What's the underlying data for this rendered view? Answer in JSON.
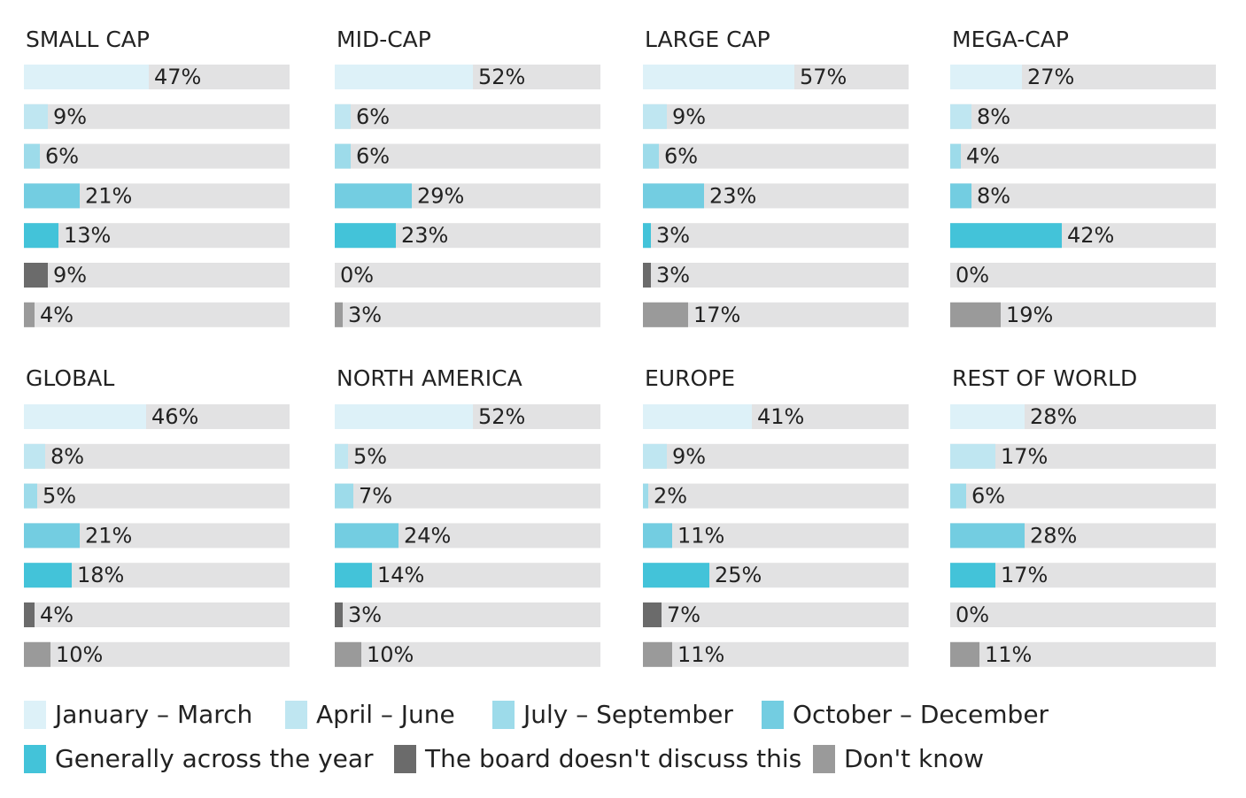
{
  "chart_data": {
    "type": "bar",
    "orientation": "horizontal",
    "xlim": [
      0,
      100
    ],
    "grid": false,
    "legend_position": "bottom",
    "value_suffix": "%",
    "series": [
      {
        "name": "January – March",
        "color": "#DDF1F8"
      },
      {
        "name": "April – June",
        "color": "#BFE6F1"
      },
      {
        "name": "July – September",
        "color": "#9DDBEA"
      },
      {
        "name": "October – December",
        "color": "#73CDE1"
      },
      {
        "name": "Generally across the year",
        "color": "#43C3D9"
      },
      {
        "name": "The board doesn't discuss this",
        "color": "#6B6B6B"
      },
      {
        "name": "Don't know",
        "color": "#9A9A9A"
      }
    ],
    "track_color": "#E2E2E3",
    "panels": [
      {
        "title": "SMALL CAP",
        "values": [
          47,
          9,
          6,
          21,
          13,
          9,
          4
        ]
      },
      {
        "title": "MID-CAP",
        "values": [
          52,
          6,
          6,
          29,
          23,
          0,
          3
        ]
      },
      {
        "title": "LARGE CAP",
        "values": [
          57,
          9,
          6,
          23,
          3,
          3,
          17
        ]
      },
      {
        "title": "MEGA-CAP",
        "values": [
          27,
          8,
          4,
          8,
          42,
          0,
          19
        ]
      },
      {
        "title": "GLOBAL",
        "values": [
          46,
          8,
          5,
          21,
          18,
          4,
          10
        ]
      },
      {
        "title": "NORTH AMERICA",
        "values": [
          52,
          5,
          7,
          24,
          14,
          3,
          10
        ]
      },
      {
        "title": "EUROPE",
        "values": [
          41,
          9,
          2,
          11,
          25,
          7,
          11
        ]
      },
      {
        "title": "REST OF WORLD",
        "values": [
          28,
          17,
          6,
          28,
          17,
          0,
          11
        ]
      }
    ]
  }
}
